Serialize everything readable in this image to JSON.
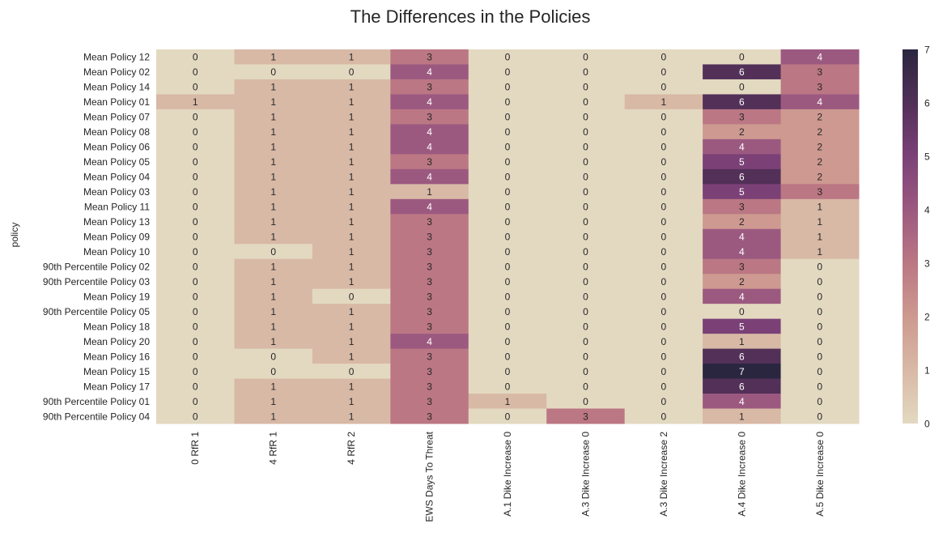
{
  "chart_data": {
    "type": "heatmap",
    "title": "The Differences in the Policies",
    "ylabel": "policy",
    "xlabel": "",
    "columns": [
      "0 RfR 1",
      "4 RfR 1",
      "4 RfR 2",
      "EWS Days To Threat",
      "A.1 Dike Increase 0",
      "A.3 Dike Increase 0",
      "A.3 Dike Increase 2",
      "A.4 Dike Increase 0",
      "A.5 Dike Increase 0"
    ],
    "rows": [
      "Mean Policy 12",
      "Mean Policy 02",
      "Mean Policy 14",
      "Mean Policy 01",
      "Mean Policy 07",
      "Mean Policy 08",
      "Mean Policy 06",
      "Mean Policy 05",
      "Mean Policy 04",
      "Mean Policy 03",
      "Mean Policy 11",
      "Mean Policy 13",
      "Mean Policy 09",
      "Mean Policy 10",
      "90th Percentile Policy 02",
      "90th Percentile Policy 03",
      "Mean Policy 19",
      "90th Percentile Policy 05",
      "Mean Policy 18",
      "Mean Policy 20",
      "Mean Policy 16",
      "Mean Policy 15",
      "Mean Policy 17",
      "90th Percentile Policy 01",
      "90th Percentile Policy 04"
    ],
    "values": [
      [
        0,
        1,
        1,
        3,
        0,
        0,
        0,
        0,
        4
      ],
      [
        0,
        0,
        0,
        4,
        0,
        0,
        0,
        6,
        3
      ],
      [
        0,
        1,
        1,
        3,
        0,
        0,
        0,
        0,
        3
      ],
      [
        1,
        1,
        1,
        4,
        0,
        0,
        1,
        6,
        4
      ],
      [
        0,
        1,
        1,
        3,
        0,
        0,
        0,
        3,
        2
      ],
      [
        0,
        1,
        1,
        4,
        0,
        0,
        0,
        2,
        2
      ],
      [
        0,
        1,
        1,
        4,
        0,
        0,
        0,
        4,
        2
      ],
      [
        0,
        1,
        1,
        3,
        0,
        0,
        0,
        5,
        2
      ],
      [
        0,
        1,
        1,
        4,
        0,
        0,
        0,
        6,
        2
      ],
      [
        0,
        1,
        1,
        1,
        0,
        0,
        0,
        5,
        3
      ],
      [
        0,
        1,
        1,
        4,
        0,
        0,
        0,
        3,
        1
      ],
      [
        0,
        1,
        1,
        3,
        0,
        0,
        0,
        2,
        1
      ],
      [
        0,
        1,
        1,
        3,
        0,
        0,
        0,
        4,
        1
      ],
      [
        0,
        0,
        1,
        3,
        0,
        0,
        0,
        4,
        1
      ],
      [
        0,
        1,
        1,
        3,
        0,
        0,
        0,
        3,
        0
      ],
      [
        0,
        1,
        1,
        3,
        0,
        0,
        0,
        2,
        0
      ],
      [
        0,
        1,
        0,
        3,
        0,
        0,
        0,
        4,
        0
      ],
      [
        0,
        1,
        1,
        3,
        0,
        0,
        0,
        0,
        0
      ],
      [
        0,
        1,
        1,
        3,
        0,
        0,
        0,
        5,
        0
      ],
      [
        0,
        1,
        1,
        4,
        0,
        0,
        0,
        1,
        0
      ],
      [
        0,
        0,
        1,
        3,
        0,
        0,
        0,
        6,
        0
      ],
      [
        0,
        0,
        0,
        3,
        0,
        0,
        0,
        7,
        0
      ],
      [
        0,
        1,
        1,
        3,
        0,
        0,
        0,
        6,
        0
      ],
      [
        0,
        1,
        1,
        3,
        1,
        0,
        0,
        4,
        0
      ],
      [
        0,
        1,
        1,
        3,
        0,
        3,
        0,
        1,
        0
      ]
    ],
    "colorbar": {
      "min": 0,
      "max": 7,
      "ticks": [
        "0",
        "1",
        "2",
        "3",
        "4",
        "5",
        "6",
        "7"
      ]
    },
    "colors": [
      "#e3d9c1",
      "#d8b9a6",
      "#cd9990",
      "#bb7783",
      "#9c5980",
      "#7b4177",
      "#523058",
      "#2a2640"
    ],
    "annot_dark": "#262626",
    "annot_light": "#ffffff"
  }
}
